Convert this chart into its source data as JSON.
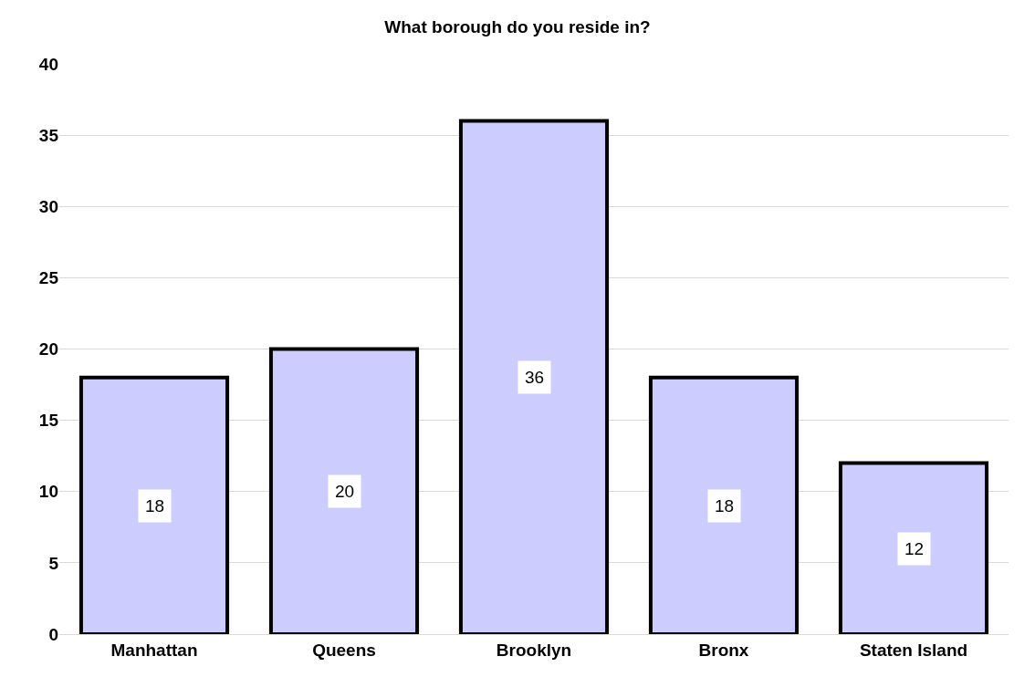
{
  "chart_data": {
    "type": "bar",
    "title": "What borough do you reside in?",
    "categories": [
      "Manhattan",
      "Queens",
      "Brooklyn",
      "Bronx",
      "Staten Island"
    ],
    "values": [
      18,
      20,
      36,
      18,
      12
    ],
    "color": "#ccccff",
    "ylim": [
      0,
      40
    ],
    "yticks": [
      0,
      5,
      10,
      15,
      20,
      25,
      30,
      35,
      40
    ],
    "grid": "y",
    "data_labels": true
  }
}
